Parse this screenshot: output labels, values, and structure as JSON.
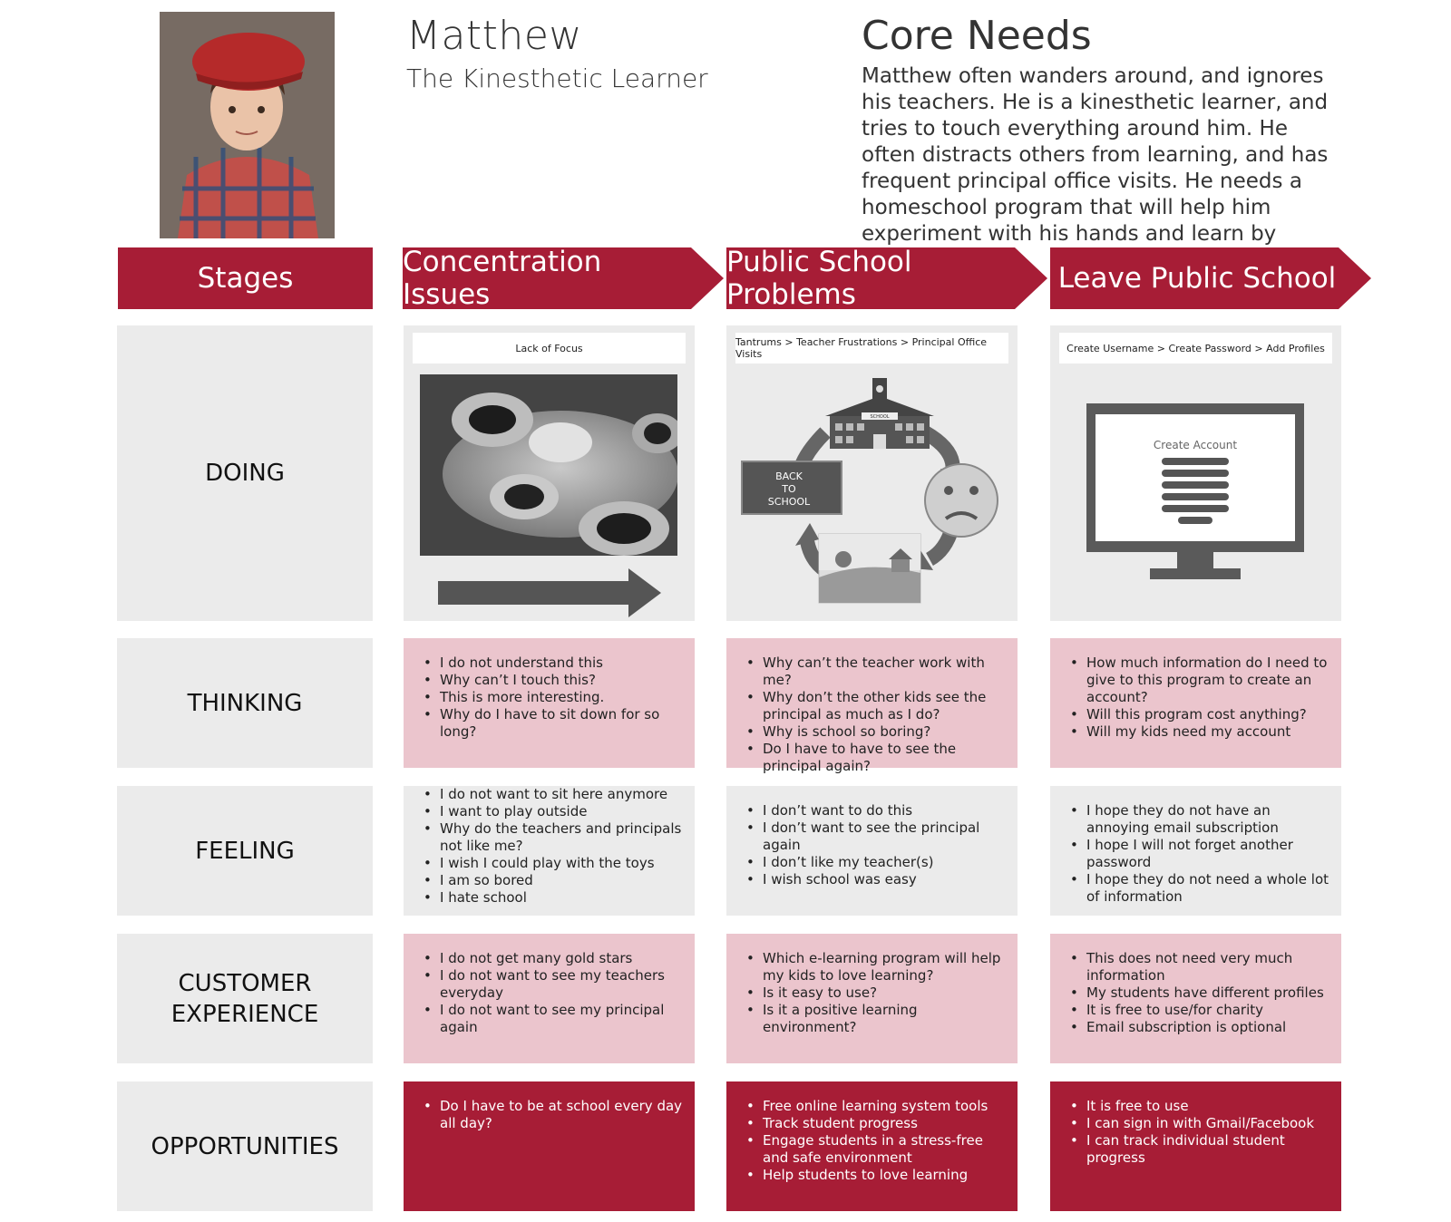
{
  "persona": {
    "name": "Matthew",
    "subtitle": "The Kinesthetic Learner",
    "photo_icon": "boy-portrait-image"
  },
  "core_needs": {
    "title": "Core Needs",
    "text": "Matthew often wanders around, and ignores his teachers. He is a kinesthetic learner, and tries to touch everything around him. He often distracts others from learning, and has frequent principal office visits. He needs a homeschool program that will help him experiment with his hands and learn by doing."
  },
  "colors": {
    "accent": "#a71d36",
    "pink": "#ebc5cd",
    "grey": "#ebebeb"
  },
  "stages": {
    "label": "Stages",
    "items": [
      "Concentration Issues",
      "Public School Problems",
      "Leave Public School"
    ]
  },
  "rows": {
    "doing": "DOING",
    "thinking": "THINKING",
    "feeling": "FEELING",
    "customer_experience_1": "CUSTOMER",
    "customer_experience_2": "EXPERIENCE",
    "opportunities": "OPPORTUNITIES"
  },
  "doing": {
    "col1": {
      "caption": "Lack of Focus",
      "image": "fidget-spinner-image",
      "arrow": "right-arrow-icon"
    },
    "col2": {
      "caption": "Tantrums > Teacher Frustrations > Principal Office Visits",
      "chalkboard_line1": "BACK",
      "chalkboard_line2": "TO",
      "chalkboard_line3": "SCHOOL",
      "school_sign": "SCHOOL",
      "image": "school-cycle-diagram"
    },
    "col3": {
      "caption": "Create Username > Create Password > Add Profiles",
      "screen_title": "Create Account",
      "image": "monitor-icon"
    }
  },
  "thinking": {
    "col1": [
      "I do not understand this",
      "Why can’t I touch this?",
      "This is more interesting.",
      "Why do I have to sit down for so long?"
    ],
    "col2": [
      "Why can’t the teacher work with me?",
      "Why don’t the other kids see the principal as much as I do?",
      "Why is school so boring?",
      "Do I have to have to see the principal again?"
    ],
    "col3": [
      "How much information do I need to give to this program to create an account?",
      "Will this program cost anything?",
      "Will my kids need my account"
    ]
  },
  "feeling": {
    "col1": [
      "I do not want to sit here anymore",
      "I want to play outside",
      "Why do the teachers and principals not like me?",
      "I wish I could play with the toys",
      "I am so bored",
      "I hate school"
    ],
    "col2": [
      "I don’t want to do this",
      "I don’t want to see the principal again",
      "I don’t like my teacher(s)",
      "I wish school was easy"
    ],
    "col3": [
      "I hope they do not have an annoying email subscription",
      "I hope I will not forget another password",
      "I hope they do not need a whole lot of information"
    ]
  },
  "customer_experience": {
    "col1": [
      "I do not get many gold stars",
      "I do not want to see my teachers everyday",
      "I do not want to see my principal again"
    ],
    "col2": [
      "Which e-learning program will help my kids to love learning?",
      "Is it easy to use?",
      "Is it a positive learning environment?"
    ],
    "col3": [
      "This does not need very much information",
      "My students have different profiles",
      "It is free to use/for charity",
      "Email subscription is optional"
    ]
  },
  "opportunities": {
    "col1": [
      "Do I have to be at school every day all day?"
    ],
    "col2": [
      "Free online learning system tools",
      "Track student progress",
      "Engage students in a stress-free and safe environment",
      "Help students to love learning"
    ],
    "col3": [
      "It is free to use",
      "I can sign in with Gmail/Facebook",
      "I can track individual student progress"
    ]
  }
}
